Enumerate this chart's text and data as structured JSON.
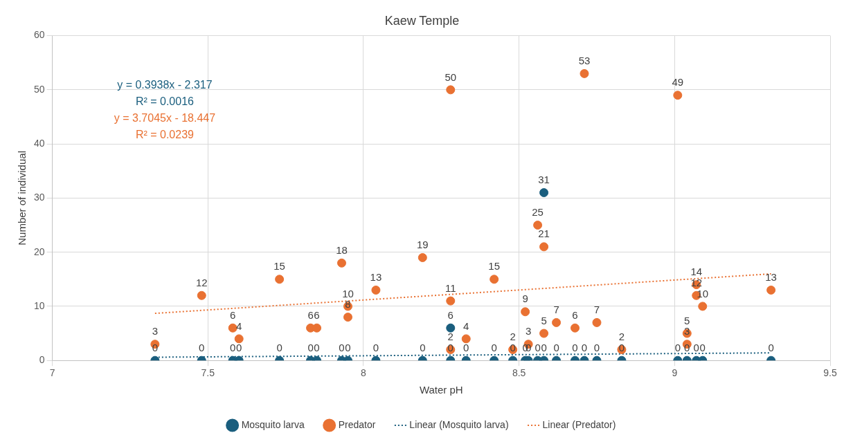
{
  "chart_data": {
    "type": "scatter",
    "title": "Kaew Temple",
    "xlabel": "Water pH",
    "ylabel": "Number of individual",
    "xlim": [
      7,
      9.5
    ],
    "xticks": [
      7,
      7.5,
      8,
      8.5,
      9,
      9.5
    ],
    "ylim": [
      0,
      60
    ],
    "yticks": [
      0,
      10,
      20,
      30,
      40,
      50,
      60
    ],
    "grid": true,
    "legend": "bottom",
    "marker": "circle",
    "annotations": [
      "y = 0.3938x - 2.317",
      "R² = 0.0016",
      "y = 3.7045x - 18.447",
      "R² = 0.0239"
    ],
    "series": [
      {
        "name": "Mosquito larva",
        "type": "scatter",
        "color": "#1a5e7e",
        "x": [
          7.33,
          7.48,
          7.58,
          7.6,
          7.73,
          7.83,
          7.85,
          7.93,
          7.95,
          8.04,
          8.19,
          8.28,
          8.28,
          8.33,
          8.42,
          8.48,
          8.52,
          8.53,
          8.56,
          8.58,
          8.58,
          8.62,
          8.68,
          8.71,
          8.75,
          8.83,
          9.01,
          9.04,
          9.07,
          9.09,
          9.31
        ],
        "values": [
          0,
          0,
          0,
          0,
          0,
          0,
          0,
          0,
          0,
          0,
          0,
          6,
          0,
          0,
          0,
          0,
          0,
          0,
          0,
          0,
          31,
          0,
          0,
          0,
          0,
          0,
          0,
          0,
          0,
          0,
          0
        ],
        "value_labels": [
          "0",
          "0",
          "0",
          "0",
          "0",
          "0",
          "0",
          "0",
          "0",
          "0",
          "0",
          "6",
          "0",
          "0",
          "0",
          "0",
          "0",
          "0",
          "0",
          "0",
          "31",
          "0",
          "0",
          "0",
          "0",
          "0",
          "0",
          "0",
          "0",
          "0",
          "0"
        ]
      },
      {
        "name": "Predator",
        "type": "scatter",
        "color": "#e97132",
        "x": [
          7.33,
          7.48,
          7.58,
          7.6,
          7.73,
          7.83,
          7.85,
          7.93,
          7.95,
          7.95,
          8.04,
          8.19,
          8.28,
          8.28,
          8.28,
          8.33,
          8.42,
          8.48,
          8.52,
          8.53,
          8.56,
          8.58,
          8.58,
          8.62,
          8.68,
          8.71,
          8.75,
          8.83,
          9.01,
          9.04,
          9.04,
          9.07,
          9.07,
          9.09,
          9.31
        ],
        "values": [
          3,
          12,
          6,
          4,
          15,
          6,
          6,
          18,
          10,
          8,
          13,
          19,
          50,
          11,
          2,
          4,
          15,
          2,
          9,
          3,
          25,
          21,
          5,
          7,
          6,
          53,
          7,
          2,
          49,
          5,
          3,
          14,
          12,
          10,
          13
        ],
        "value_labels": [
          "3",
          "12",
          "6",
          "4",
          "15",
          "6",
          "6",
          "18",
          "10",
          "8",
          "13",
          "19",
          "50",
          "11",
          "2",
          "4",
          "15",
          "2",
          "9",
          "3",
          "25",
          "21",
          "5",
          "7",
          "6",
          "53",
          "7",
          "2",
          "49",
          "5",
          "3",
          "14",
          "12",
          "10",
          "13"
        ]
      },
      {
        "name": "Linear (Mosquito larva)",
        "type": "line",
        "color": "#1a5e7e",
        "marker": "none",
        "line_style": "dotted",
        "x": [
          7.33,
          9.31
        ],
        "values": [
          0.6,
          1.4
        ]
      },
      {
        "name": "Linear (Predator)",
        "type": "line",
        "color": "#e97132",
        "marker": "none",
        "line_style": "dotted",
        "x": [
          7.33,
          9.31
        ],
        "values": [
          8.7,
          16.0
        ]
      }
    ]
  }
}
